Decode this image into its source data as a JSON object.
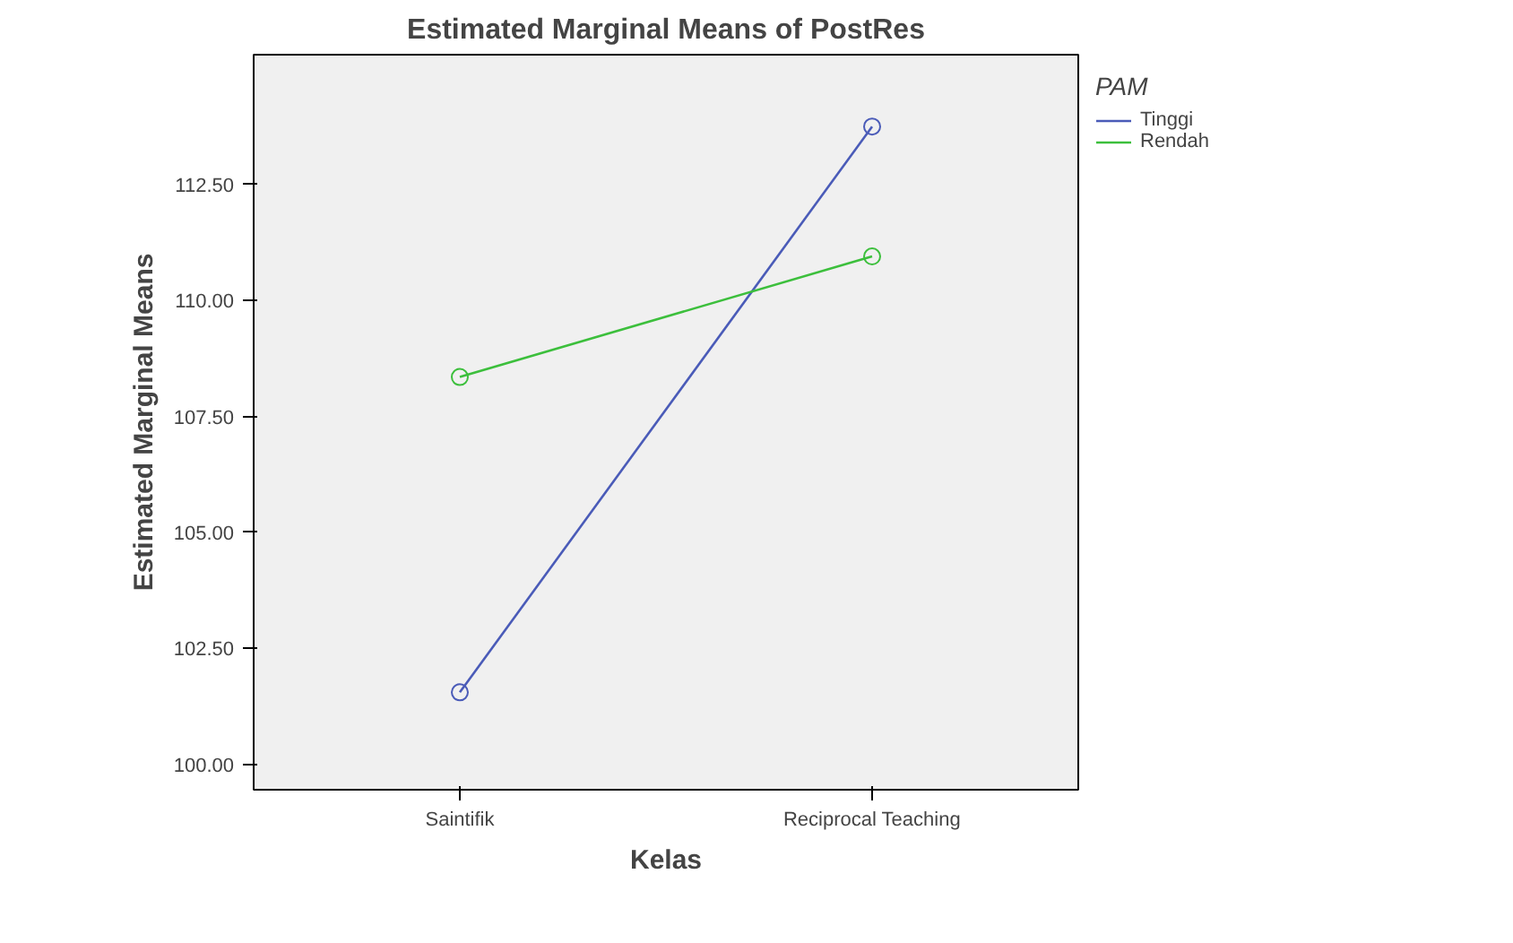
{
  "chart_data": {
    "type": "line",
    "title": "Estimated Marginal Means of PostRes",
    "xlabel": "Kelas",
    "ylabel": "Estimated Marginal Means",
    "legend_title": "PAM",
    "categories": [
      "Saintifik",
      "Reciprocal Teaching"
    ],
    "series": [
      {
        "name": "Tinggi",
        "color": "#4a5bb8",
        "values": [
          101.55,
          113.75
        ]
      },
      {
        "name": "Rendah",
        "color": "#3cbf3c",
        "values": [
          108.35,
          110.95
        ]
      }
    ],
    "ylim": [
      99.45,
      115.3
    ],
    "yticks": [
      {
        "value": 100,
        "label": "100.00"
      },
      {
        "value": 102.5,
        "label": "102.50"
      },
      {
        "value": 105,
        "label": "105.00"
      },
      {
        "value": 107.5,
        "label": "107.50"
      },
      {
        "value": 110,
        "label": "110.00"
      },
      {
        "value": 112.5,
        "label": "112.50"
      }
    ],
    "grid": false,
    "legend": "top right",
    "marker": "circle",
    "line_style": "solid"
  }
}
